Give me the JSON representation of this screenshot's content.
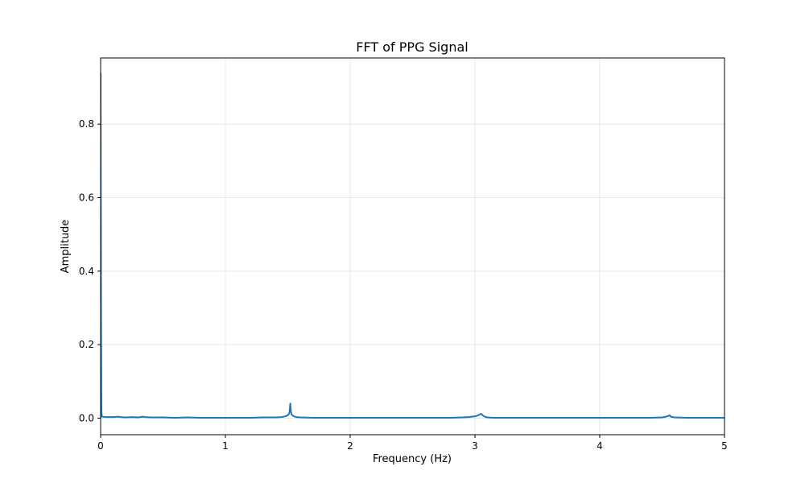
{
  "chart_data": {
    "type": "line",
    "title": "FFT of PPG Signal",
    "xlabel": "Frequency (Hz)",
    "ylabel": "Amplitude",
    "xlim": [
      0,
      5
    ],
    "ylim": [
      -0.045,
      0.98
    ],
    "xticks": [
      0,
      1,
      2,
      3,
      4,
      5
    ],
    "xtick_labels": [
      "0",
      "1",
      "2",
      "3",
      "4",
      "5"
    ],
    "yticks": [
      0.0,
      0.2,
      0.4,
      0.6,
      0.8
    ],
    "ytick_labels": [
      "0.0",
      "0.2",
      "0.4",
      "0.6",
      "0.8"
    ],
    "grid": true,
    "line_color": "#1f77b4",
    "series": [
      {
        "x": [
          0.0,
          0.003,
          0.006,
          0.01,
          0.05,
          0.1,
          0.14,
          0.16,
          0.2,
          0.25,
          0.3,
          0.34,
          0.36,
          0.4,
          0.5,
          0.6,
          0.7,
          0.8,
          0.9,
          1.0,
          1.1,
          1.2,
          1.3,
          1.4,
          1.45,
          1.48,
          1.5,
          1.51,
          1.515,
          1.52,
          1.525,
          1.53,
          1.54,
          1.55,
          1.57,
          1.6,
          1.7,
          1.8,
          2.0,
          2.2,
          2.4,
          2.6,
          2.8,
          2.9,
          2.95,
          3.0,
          3.02,
          3.04,
          3.05,
          3.06,
          3.08,
          3.1,
          3.15,
          3.2,
          3.4,
          3.6,
          3.8,
          4.0,
          4.2,
          4.4,
          4.5,
          4.53,
          4.55,
          4.56,
          4.57,
          4.6,
          4.7,
          4.8,
          5.0
        ],
        "y": [
          0.94,
          0.3,
          0.02,
          0.004,
          0.003,
          0.003,
          0.004,
          0.003,
          0.002,
          0.003,
          0.002,
          0.004,
          0.003,
          0.002,
          0.002,
          0.001,
          0.002,
          0.001,
          0.001,
          0.001,
          0.001,
          0.001,
          0.002,
          0.002,
          0.003,
          0.005,
          0.008,
          0.012,
          0.02,
          0.04,
          0.018,
          0.01,
          0.007,
          0.005,
          0.003,
          0.002,
          0.001,
          0.001,
          0.001,
          0.001,
          0.001,
          0.001,
          0.001,
          0.002,
          0.003,
          0.005,
          0.007,
          0.01,
          0.012,
          0.008,
          0.004,
          0.002,
          0.001,
          0.001,
          0.001,
          0.001,
          0.001,
          0.001,
          0.001,
          0.001,
          0.002,
          0.004,
          0.006,
          0.008,
          0.004,
          0.002,
          0.001,
          0.001,
          0.001
        ]
      }
    ]
  }
}
